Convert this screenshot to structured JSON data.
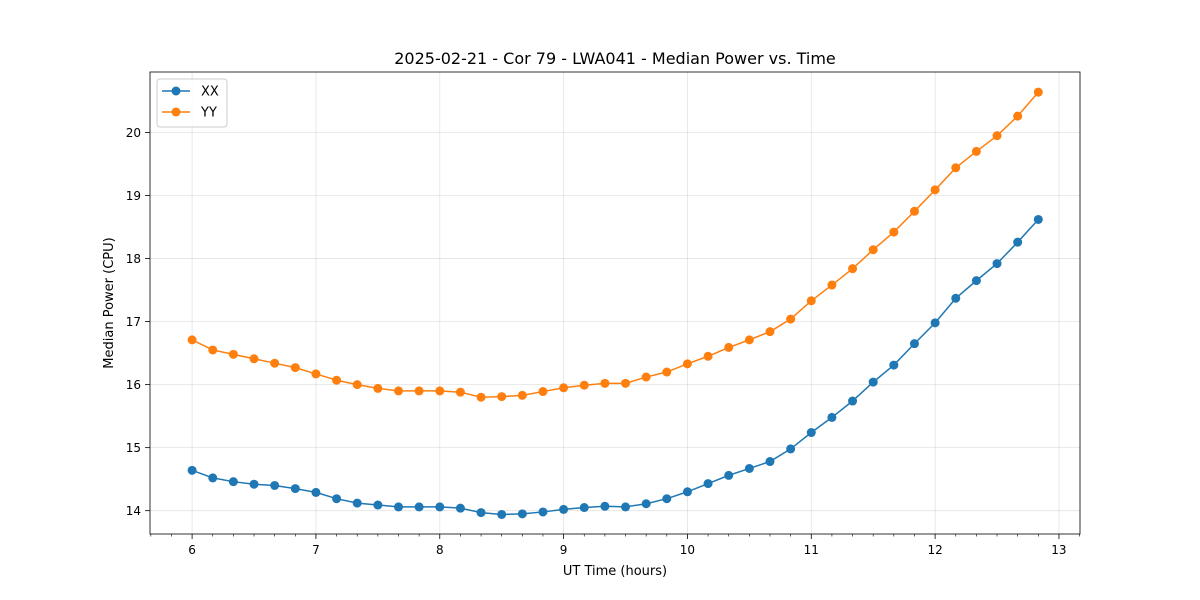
{
  "chart_data": {
    "type": "line",
    "title": "2025-02-21 - Cor 79 - LWA041 - Median Power vs. Time",
    "xlabel": "UT Time (hours)",
    "ylabel": "Median Power (CPU)",
    "xlim": [
      5.66,
      13.17
    ],
    "ylim": [
      13.63,
      20.96
    ],
    "xticks": [
      6,
      7,
      8,
      9,
      10,
      11,
      12,
      13
    ],
    "yticks": [
      14,
      15,
      16,
      17,
      18,
      19,
      20
    ],
    "grid": true,
    "legend_position": "upper-left",
    "x": [
      6.0,
      6.1667,
      6.3333,
      6.5,
      6.6667,
      6.8333,
      7.0,
      7.1667,
      7.3333,
      7.5,
      7.6667,
      7.8333,
      8.0,
      8.1667,
      8.3333,
      8.5,
      8.6667,
      8.8333,
      9.0,
      9.1667,
      9.3333,
      9.5,
      9.6667,
      9.8333,
      10.0,
      10.1667,
      10.3333,
      10.5,
      10.6667,
      10.8333,
      11.0,
      11.1667,
      11.3333,
      11.5,
      11.6667,
      11.8333,
      12.0,
      12.1667,
      12.3333,
      12.5,
      12.6667,
      12.8333
    ],
    "series": [
      {
        "name": "XX",
        "color": "#1f77b4",
        "values": [
          14.64,
          14.52,
          14.46,
          14.42,
          14.4,
          14.35,
          14.29,
          14.19,
          14.12,
          14.09,
          14.06,
          14.06,
          14.06,
          14.04,
          13.97,
          13.94,
          13.95,
          13.98,
          14.02,
          14.05,
          14.07,
          14.06,
          14.11,
          14.19,
          14.3,
          14.43,
          14.56,
          14.67,
          14.78,
          14.98,
          15.24,
          15.48,
          15.74,
          16.04,
          16.31,
          16.65,
          16.98,
          17.37,
          17.65,
          17.92,
          18.26,
          18.62
        ]
      },
      {
        "name": "YY",
        "color": "#ff7f0e",
        "values": [
          16.71,
          16.55,
          16.48,
          16.41,
          16.34,
          16.27,
          16.17,
          16.07,
          16.0,
          15.94,
          15.9,
          15.9,
          15.9,
          15.88,
          15.8,
          15.81,
          15.83,
          15.89,
          15.95,
          15.99,
          16.02,
          16.02,
          16.12,
          16.2,
          16.33,
          16.45,
          16.59,
          16.71,
          16.84,
          17.04,
          17.33,
          17.58,
          17.84,
          18.14,
          18.42,
          18.75,
          19.09,
          19.44,
          19.7,
          19.95,
          20.26,
          20.64
        ]
      }
    ]
  }
}
